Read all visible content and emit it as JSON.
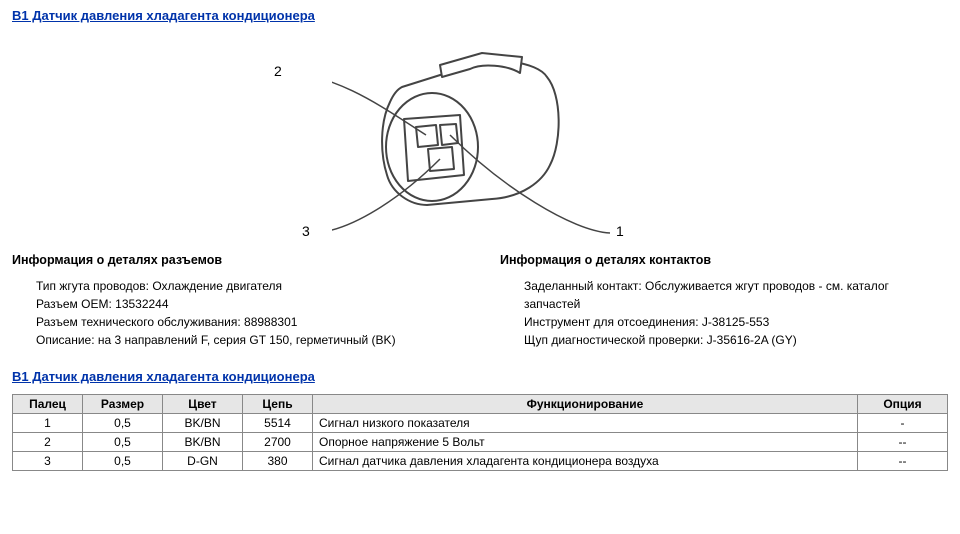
{
  "title_link": "B1 Датчик давления хладагента кондиционера",
  "diagram": {
    "labels": {
      "pin1": "1",
      "pin2": "2",
      "pin3": "3"
    },
    "stroke": "#444444",
    "fill": "#ffffff"
  },
  "connector_info": {
    "heading": "Информация о деталях разъемов",
    "lines": [
      "Тип жгута проводов: Охлаждение двигателя",
      "Разъем OEM: 13532244",
      "Разъем технического обслуживания: 88988301",
      "Описание: на 3 направлений F, серия GT 150, герметичный (BK)"
    ]
  },
  "contact_info": {
    "heading": "Информация о деталях контактов",
    "lines": [
      "Заделанный контакт: Обслуживается жгут проводов - см. каталог запчастей",
      "Инструмент для отсоединения: J-38125-553",
      "Щуп диагностической проверки: J-35616-2A (GY)"
    ]
  },
  "table_title": "B1 Датчик давления хладагента кондиционера",
  "table": {
    "headers": {
      "pin": "Палец",
      "size": "Размер",
      "color": "Цвет",
      "circuit": "Цепь",
      "function": "Функционирование",
      "option": "Опция"
    },
    "rows": [
      {
        "pin": "1",
        "size": "0,5",
        "color": "BK/BN",
        "circuit": "5514",
        "function": "Сигнал низкого показателя",
        "option": "-"
      },
      {
        "pin": "2",
        "size": "0,5",
        "color": "BK/BN",
        "circuit": "2700",
        "function": "Опорное напряжение 5 Вольт",
        "option": "--"
      },
      {
        "pin": "3",
        "size": "0,5",
        "color": "D-GN",
        "circuit": "380",
        "function": "Сигнал датчика давления хладагента кондиционера воздуха",
        "option": "--"
      }
    ]
  },
  "colors": {
    "link": "#0033aa",
    "border": "#888888",
    "th_bg": "#e6e6e6"
  }
}
